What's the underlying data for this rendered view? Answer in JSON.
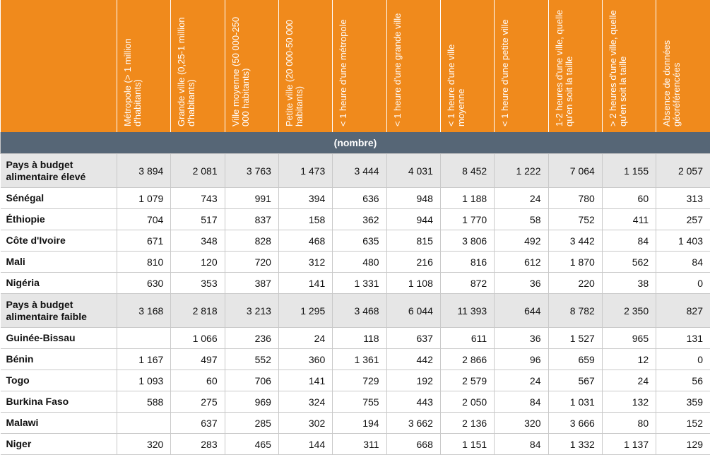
{
  "table": {
    "columns": [
      "Métropole (> 1 million d'habitants)",
      "Grande ville (0,25-1 million d'habitants)",
      "Ville moyenne (50 000-250 000 habitants)",
      "Petite ville (20 000-50  000 habitants)",
      "< 1 heure d'une métropole",
      "< 1 heure d'une grande ville",
      "< 1 heure d'une ville moyenne",
      "< 1 heure d'une petite ville",
      "1-2 heures d'une ville, quelle qu'en soit la taille",
      "> 2 heures d'une ville, quelle qu'en soit la taille",
      "Absence de données géoréférencées"
    ],
    "unit": "(nombre)",
    "rows": [
      {
        "label": "Pays à budget alimentaire élevé",
        "group": true,
        "cells": [
          "3 894",
          "2 081",
          "3 763",
          "1 473",
          "3 444",
          "4 031",
          "8 452",
          "1 222",
          "7 064",
          "1 155",
          "2 057"
        ]
      },
      {
        "label": "Sénégal",
        "cells": [
          "1 079",
          "743",
          "991",
          "394",
          "636",
          "948",
          "1 188",
          "24",
          "780",
          "60",
          "313"
        ]
      },
      {
        "label": "Éthiopie",
        "cells": [
          "704",
          "517",
          "837",
          "158",
          "362",
          "944",
          "1 770",
          "58",
          "752",
          "411",
          "257"
        ]
      },
      {
        "label": "Côte d'Ivoire",
        "cells": [
          "671",
          "348",
          "828",
          "468",
          "635",
          "815",
          "3 806",
          "492",
          "3 442",
          "84",
          "1 403"
        ]
      },
      {
        "label": "Mali",
        "cells": [
          "810",
          "120",
          "720",
          "312",
          "480",
          "216",
          "816",
          "612",
          "1 870",
          "562",
          "84"
        ]
      },
      {
        "label": "Nigéria",
        "cells": [
          "630",
          "353",
          "387",
          "141",
          "1 331",
          "1 108",
          "872",
          "36",
          "220",
          "38",
          "0"
        ]
      },
      {
        "label": "Pays à budget alimentaire faible",
        "group": true,
        "cells": [
          "3 168",
          "2 818",
          "3 213",
          "1 295",
          "3 468",
          "6 044",
          "11 393",
          "644",
          "8 782",
          "2 350",
          "827"
        ]
      },
      {
        "label": "Guinée-Bissau",
        "cells": [
          null,
          "1 066",
          "236",
          "24",
          "118",
          "637",
          "611",
          "36",
          "1 527",
          "965",
          "131"
        ]
      },
      {
        "label": "Bénin",
        "cells": [
          "1 167",
          "497",
          "552",
          "360",
          "1 361",
          "442",
          "2 866",
          "96",
          "659",
          "12",
          "0"
        ]
      },
      {
        "label": "Togo",
        "cells": [
          "1 093",
          "60",
          "706",
          "141",
          "729",
          "192",
          "2 579",
          "24",
          "567",
          "24",
          "56"
        ]
      },
      {
        "label": "Burkina Faso",
        "cells": [
          "588",
          "275",
          "969",
          "324",
          "755",
          "443",
          "2 050",
          "84",
          "1 031",
          "132",
          "359"
        ]
      },
      {
        "label": "Malawi",
        "cells": [
          null,
          "637",
          "285",
          "302",
          "194",
          "3 662",
          "2 136",
          "320",
          "3 666",
          "80",
          "152"
        ]
      },
      {
        "label": "Niger",
        "cells": [
          "320",
          "283",
          "465",
          "144",
          "311",
          "668",
          "1 151",
          "84",
          "1 332",
          "1 137",
          "129"
        ]
      }
    ]
  }
}
